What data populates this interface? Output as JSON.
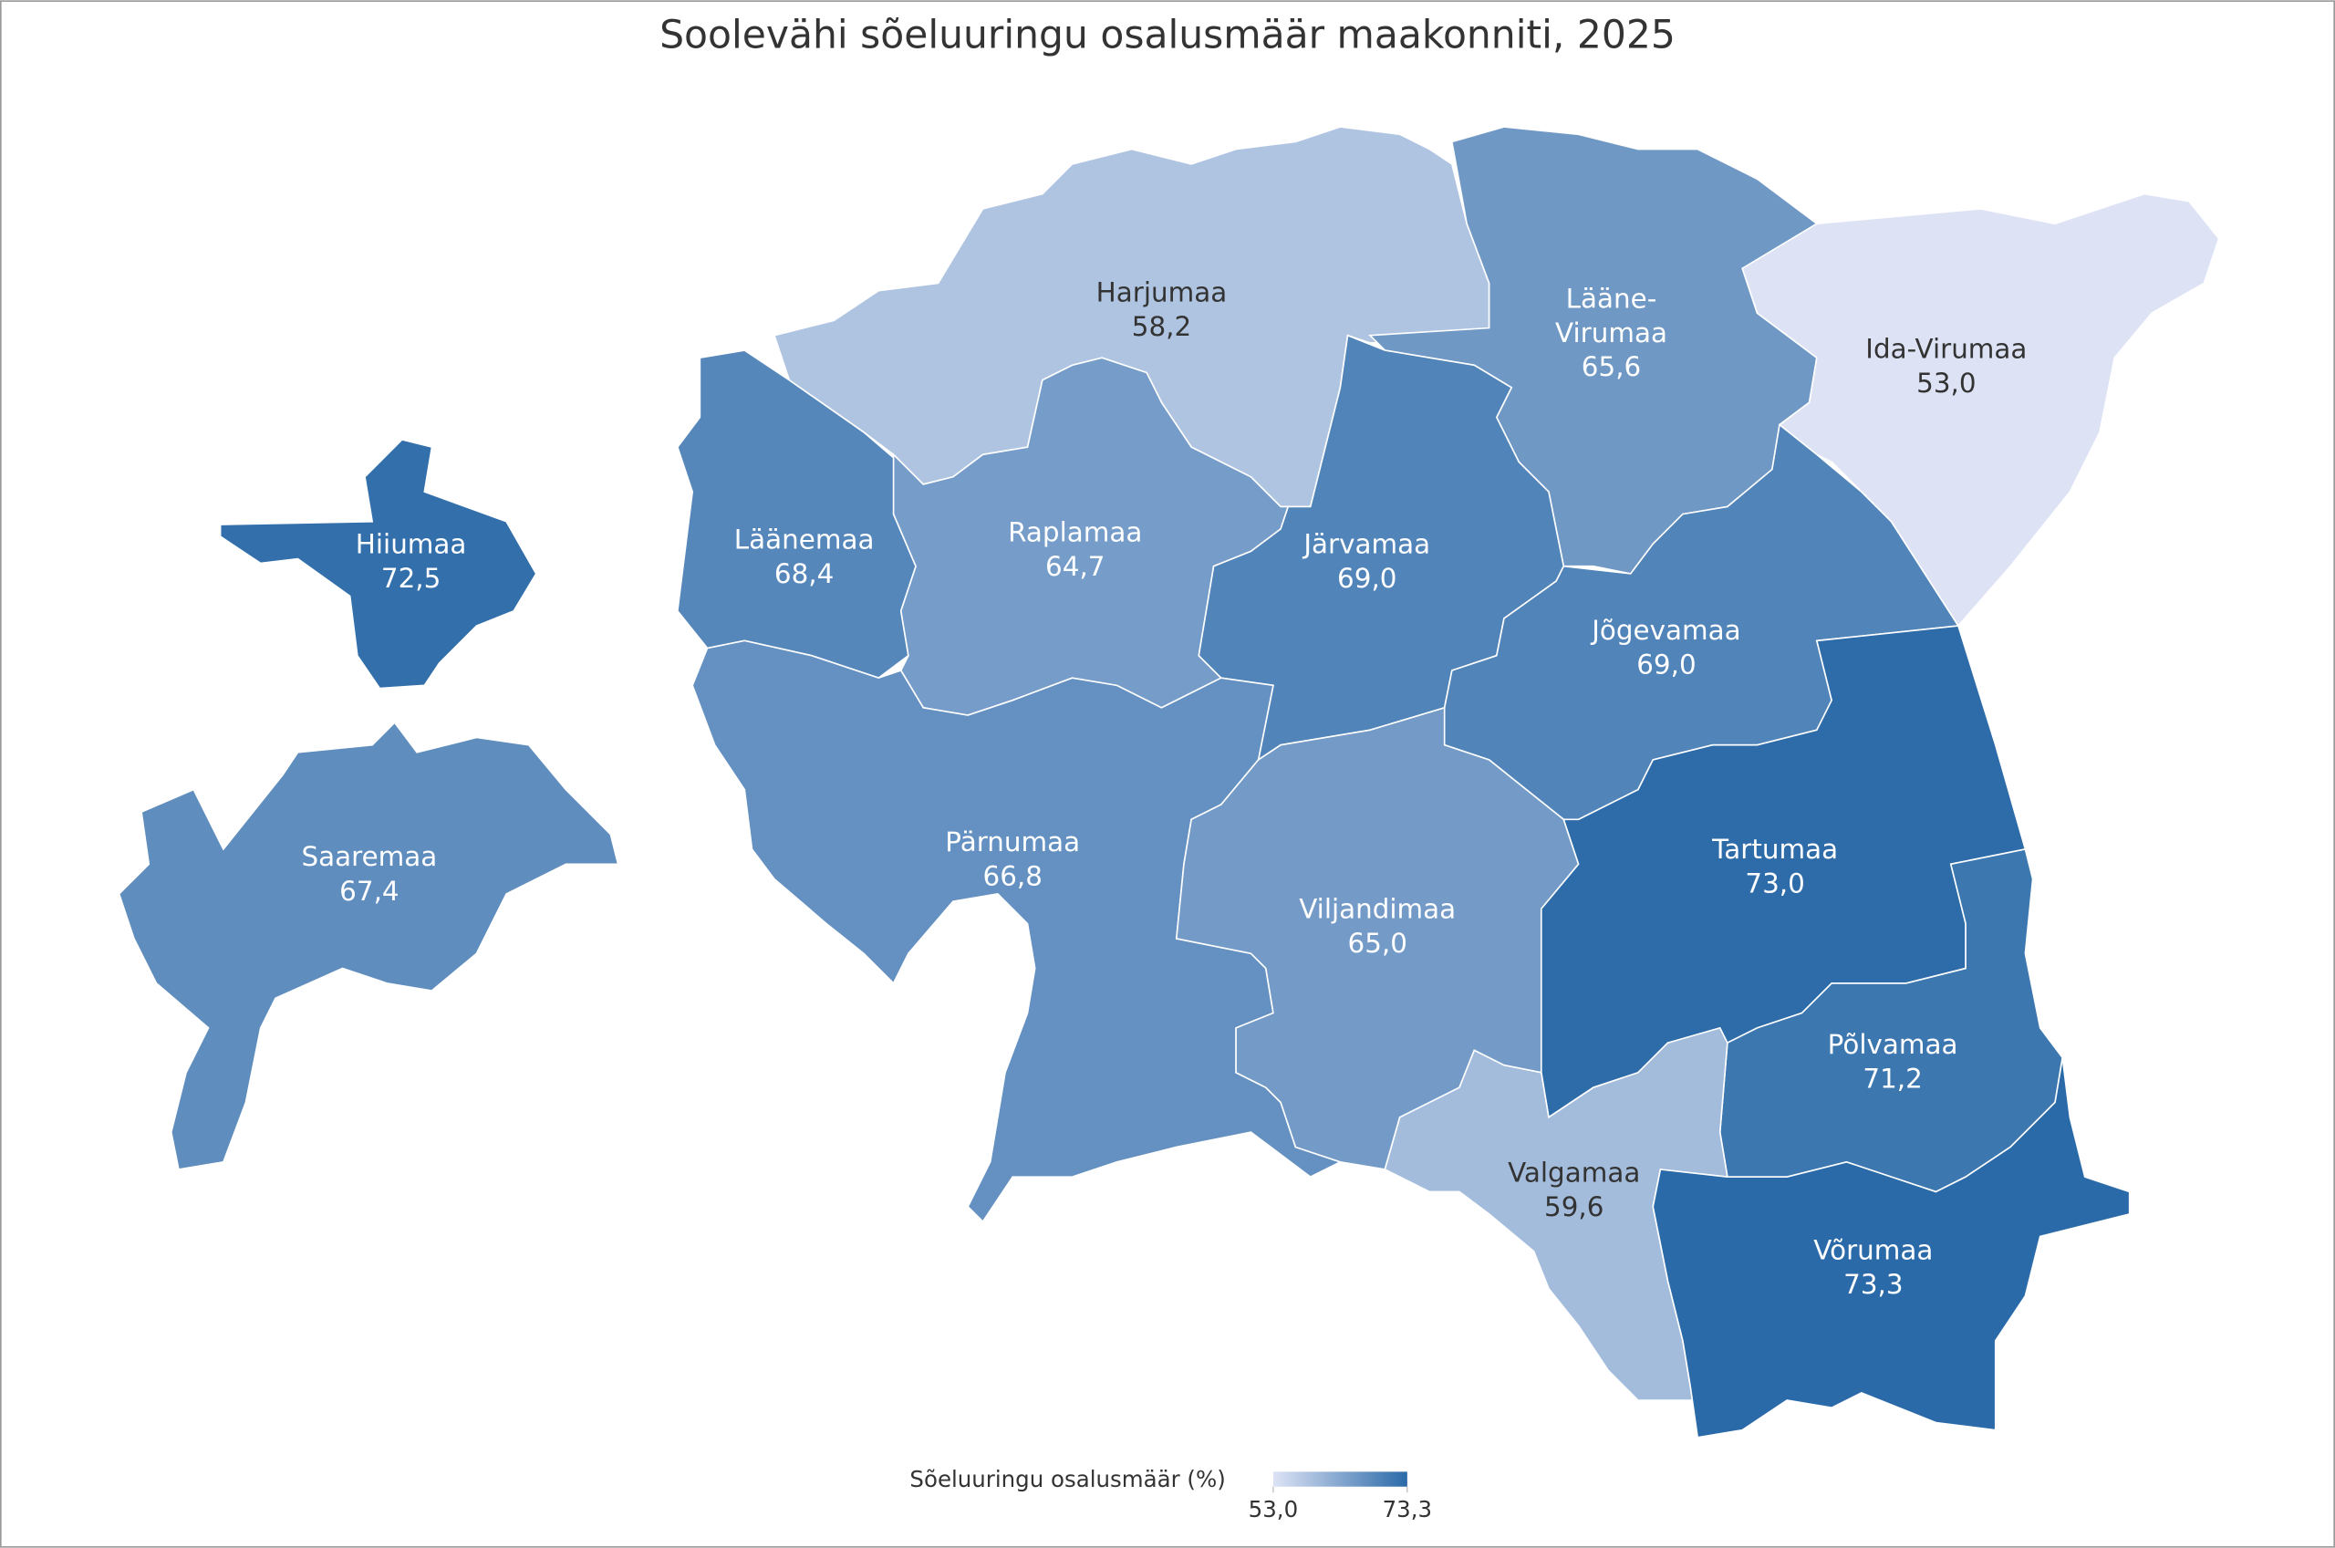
{
  "chart_data": {
    "type": "choropleth",
    "title": "Soolevähi sõeluuringu osalusmäär maakonniti, 2025",
    "legend_title": "Sõeluuringu osalusmäär (%)",
    "regions": [
      "Harjumaa",
      "Lääne-Virumaa",
      "Ida-Virumaa",
      "Hiiumaa",
      "Läänemaa",
      "Raplamaa",
      "Järvamaa",
      "Jõgevamaa",
      "Saaremaa",
      "Pärnumaa",
      "Viljandimaa",
      "Tartumaa",
      "Põlvamaa",
      "Valgamaa",
      "Võrumaa"
    ],
    "values": [
      58.2,
      65.6,
      53.0,
      72.5,
      68.4,
      64.7,
      69.0,
      69.0,
      67.4,
      66.8,
      65.0,
      73.0,
      71.2,
      59.6,
      73.3
    ],
    "value_labels": [
      "58,2",
      "65,6",
      "53,0",
      "72,5",
      "68,4",
      "64,7",
      "69,0",
      "69,0",
      "67,4",
      "66,8",
      "65,0",
      "73,0",
      "71,2",
      "59,6",
      "73,3"
    ],
    "color_scale": [
      "#dde3f5",
      "#2b6aa8"
    ],
    "colorlim": [
      53.0,
      73.3
    ],
    "colorticks": [
      {
        "value": 53.0,
        "label": "53,0"
      },
      {
        "value": 73.3,
        "label": "73,3"
      }
    ]
  }
}
